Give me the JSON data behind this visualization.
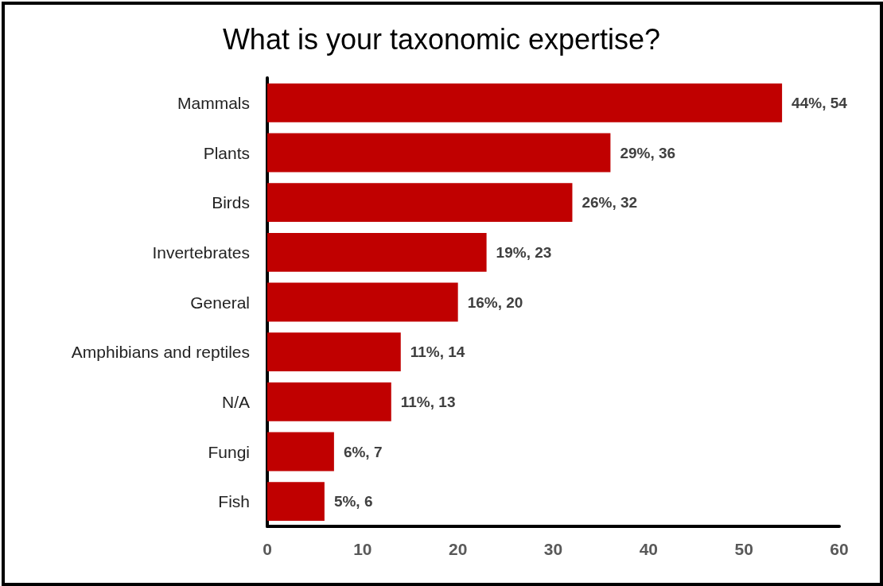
{
  "chart_data": {
    "type": "bar",
    "orientation": "horizontal",
    "title": "What is your taxonomic expertise?",
    "categories": [
      "Mammals",
      "Plants",
      "Birds",
      "Invertebrates",
      "General",
      "Amphibians and reptiles",
      "N/A",
      "Fungi",
      "Fish"
    ],
    "values": [
      54,
      36,
      32,
      23,
      20,
      14,
      13,
      7,
      6
    ],
    "color": "#c00000",
    "value_labels": [
      "44%, 54",
      "29%, 36",
      "26%, 32",
      "19%, 23",
      "16%, 20",
      "11%, 14",
      "11%, 13",
      "6%, 7",
      "5%, 6"
    ],
    "xlim": [
      0,
      60
    ],
    "xticks": [
      0,
      10,
      20,
      30,
      40,
      50,
      60
    ]
  }
}
